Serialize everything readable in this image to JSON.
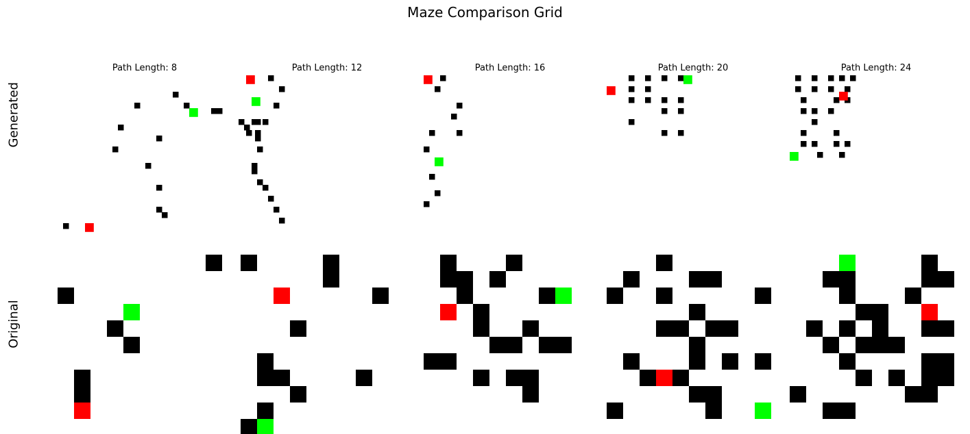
{
  "title": "Maze Comparison Grid",
  "row_labels": {
    "generated": "Generated",
    "original": "Original"
  },
  "colors": {
    "wall": "#000000",
    "start": "#00ff00",
    "end": "#ff0000",
    "open": "#ffffff"
  },
  "columns": [
    {
      "label": "Path Length: 8",
      "generated": {
        "walls": [
          [
            33,
            8
          ],
          [
            36,
            8
          ],
          [
            34,
            9
          ],
          [
            36,
            10
          ],
          [
            36,
            11
          ],
          [
            21,
            3
          ],
          [
            14,
            5
          ],
          [
            23,
            5
          ],
          [
            11,
            9
          ],
          [
            10,
            13
          ],
          [
            16,
            16
          ],
          [
            18,
            20
          ],
          [
            18,
            24
          ],
          [
            19,
            25
          ],
          [
            1,
            27
          ],
          [
            28,
            6
          ],
          [
            29,
            6
          ],
          [
            18,
            11
          ]
        ],
        "start": [
          24,
          6
        ],
        "end": [
          5,
          27
        ]
      },
      "original": {
        "walls": [
          [
            9,
            0
          ],
          [
            0,
            2
          ],
          [
            3,
            4
          ],
          [
            4,
            5
          ],
          [
            1,
            7
          ],
          [
            1,
            8
          ]
        ],
        "start": [
          4,
          3
        ],
        "end": [
          1,
          9
        ]
      }
    },
    {
      "label": "Path Length: 12",
      "generated": {
        "walls": [
          [
            5,
            0
          ],
          [
            7,
            2
          ],
          [
            6,
            5
          ],
          [
            4,
            8
          ],
          [
            2,
            8
          ],
          [
            1,
            10
          ],
          [
            3,
            13
          ],
          [
            2,
            16
          ],
          [
            2,
            17
          ],
          [
            3,
            19
          ],
          [
            4,
            20
          ],
          [
            5,
            22
          ],
          [
            6,
            24
          ],
          [
            7,
            26
          ]
        ],
        "start": [
          2,
          4
        ],
        "end": [
          1,
          0
        ]
      },
      "original": {
        "walls": [
          [
            0,
            0
          ],
          [
            5,
            0
          ],
          [
            5,
            1
          ],
          [
            8,
            2
          ],
          [
            3,
            4
          ],
          [
            1,
            6
          ],
          [
            1,
            7
          ],
          [
            2,
            7
          ],
          [
            7,
            7
          ],
          [
            3,
            8
          ],
          [
            1,
            9
          ],
          [
            0,
            10
          ]
        ],
        "start": [
          1,
          10
        ],
        "end": [
          2,
          2
        ]
      }
    },
    {
      "label": "Path Length: 16",
      "generated": {
        "walls": [
          [
            3,
            0
          ],
          [
            2,
            2
          ],
          [
            6,
            5
          ],
          [
            5,
            7
          ],
          [
            1,
            10
          ],
          [
            6,
            10
          ],
          [
            0,
            13
          ],
          [
            2,
            15
          ],
          [
            1,
            18
          ],
          [
            2,
            21
          ],
          [
            0,
            23
          ]
        ],
        "start": [
          2,
          15
        ],
        "end": [
          0,
          0
        ]
      },
      "original": {
        "walls": [
          [
            1,
            0
          ],
          [
            5,
            0
          ],
          [
            1,
            1
          ],
          [
            2,
            1
          ],
          [
            4,
            1
          ],
          [
            2,
            2
          ],
          [
            7,
            2
          ],
          [
            3,
            3
          ],
          [
            3,
            4
          ],
          [
            6,
            4
          ],
          [
            4,
            5
          ],
          [
            5,
            5
          ],
          [
            7,
            5
          ],
          [
            8,
            5
          ],
          [
            0,
            6
          ],
          [
            1,
            6
          ],
          [
            3,
            7
          ],
          [
            5,
            7
          ],
          [
            6,
            7
          ],
          [
            6,
            8
          ]
        ],
        "start": [
          8,
          2
        ],
        "end": [
          1,
          3
        ]
      }
    },
    {
      "label": "Path Length: 20",
      "generated": {
        "walls": [
          [
            4,
            0
          ],
          [
            7,
            0
          ],
          [
            10,
            0
          ],
          [
            13,
            0
          ],
          [
            4,
            2
          ],
          [
            7,
            2
          ],
          [
            4,
            4
          ],
          [
            7,
            4
          ],
          [
            10,
            4
          ],
          [
            13,
            4
          ],
          [
            10,
            6
          ],
          [
            13,
            6
          ],
          [
            4,
            8
          ],
          [
            10,
            10
          ],
          [
            13,
            10
          ]
        ],
        "start": [
          14,
          0
        ],
        "end": [
          0,
          2
        ]
      },
      "original": {
        "walls": [
          [
            3,
            0
          ],
          [
            1,
            1
          ],
          [
            5,
            1
          ],
          [
            6,
            1
          ],
          [
            0,
            2
          ],
          [
            3,
            2
          ],
          [
            9,
            2
          ],
          [
            5,
            3
          ],
          [
            3,
            4
          ],
          [
            4,
            4
          ],
          [
            6,
            4
          ],
          [
            7,
            4
          ],
          [
            5,
            5
          ],
          [
            1,
            6
          ],
          [
            5,
            6
          ],
          [
            7,
            6
          ],
          [
            9,
            6
          ],
          [
            2,
            7
          ],
          [
            4,
            7
          ],
          [
            5,
            8
          ],
          [
            6,
            8
          ],
          [
            0,
            9
          ],
          [
            6,
            9
          ]
        ],
        "start": [
          9,
          9
        ],
        "end": [
          3,
          7
        ]
      }
    },
    {
      "label": "Path Length: 24",
      "generated": {
        "walls": [
          [
            1,
            0
          ],
          [
            4,
            0
          ],
          [
            7,
            0
          ],
          [
            9,
            0
          ],
          [
            11,
            0
          ],
          [
            1,
            2
          ],
          [
            4,
            2
          ],
          [
            7,
            2
          ],
          [
            10,
            2
          ],
          [
            2,
            4
          ],
          [
            8,
            4
          ],
          [
            10,
            4
          ],
          [
            2,
            6
          ],
          [
            4,
            6
          ],
          [
            7,
            6
          ],
          [
            4,
            8
          ],
          [
            2,
            10
          ],
          [
            8,
            10
          ],
          [
            2,
            12
          ],
          [
            4,
            12
          ],
          [
            8,
            12
          ],
          [
            10,
            12
          ],
          [
            5,
            14
          ],
          [
            9,
            14
          ]
        ],
        "start": [
          0,
          14
        ],
        "end": [
          9,
          3
        ]
      },
      "original": {
        "walls": [
          [
            3,
            0
          ],
          [
            8,
            0
          ],
          [
            3,
            1
          ],
          [
            2,
            1
          ],
          [
            8,
            1
          ],
          [
            9,
            1
          ],
          [
            3,
            2
          ],
          [
            7,
            2
          ],
          [
            4,
            3
          ],
          [
            5,
            3
          ],
          [
            1,
            4
          ],
          [
            3,
            4
          ],
          [
            5,
            4
          ],
          [
            8,
            4
          ],
          [
            9,
            4
          ],
          [
            2,
            5
          ],
          [
            4,
            5
          ],
          [
            5,
            5
          ],
          [
            6,
            5
          ],
          [
            3,
            6
          ],
          [
            8,
            6
          ],
          [
            9,
            6
          ],
          [
            4,
            7
          ],
          [
            6,
            7
          ],
          [
            8,
            7
          ],
          [
            9,
            7
          ],
          [
            0,
            8
          ],
          [
            7,
            8
          ],
          [
            8,
            8
          ],
          [
            2,
            9
          ],
          [
            3,
            9
          ]
        ],
        "start": [
          3,
          0
        ],
        "end": [
          8,
          3
        ]
      }
    }
  ]
}
